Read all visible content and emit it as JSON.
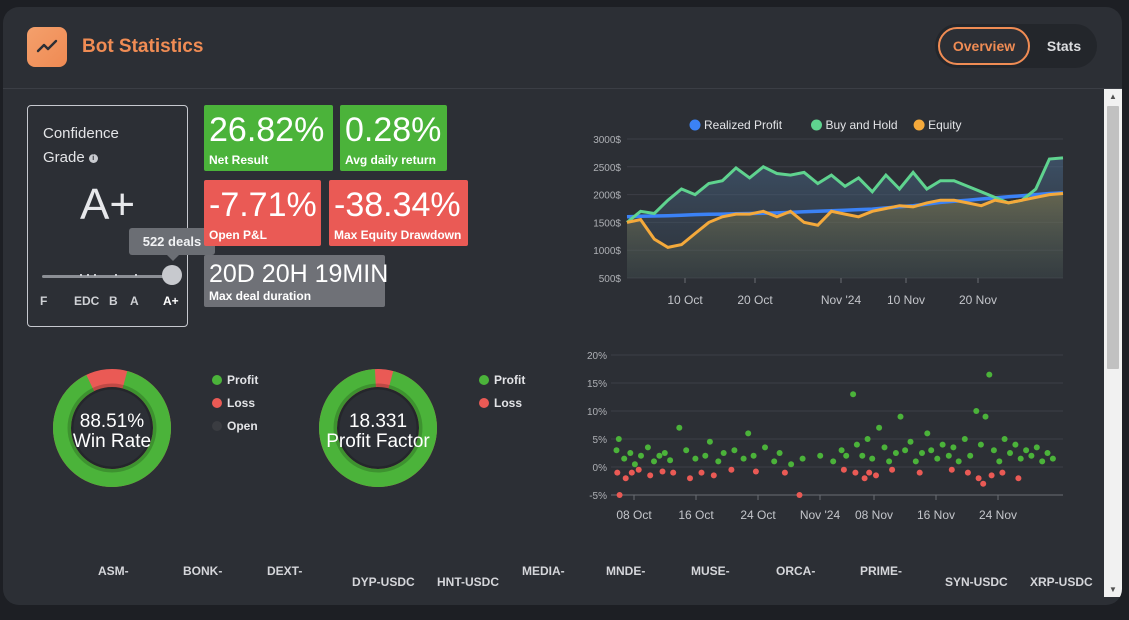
{
  "app": {
    "title": "Bot Statistics",
    "icon": "chart-line-icon",
    "accent_color": "#f08c54"
  },
  "tabs": [
    {
      "label": "Overview",
      "active": true
    },
    {
      "label": "Stats",
      "active": false
    }
  ],
  "confidence": {
    "title": "Confidence Grade",
    "grade": "A+",
    "tooltip": "522 deals",
    "scale": [
      "F",
      "EDC",
      "B",
      "A",
      "A+"
    ],
    "selected": "A+"
  },
  "stats": {
    "net_result": {
      "value": "26.82%",
      "label": "Net Result",
      "color": "#4bb33a"
    },
    "avg_daily_return": {
      "value": "0.28%",
      "label": "Avg daily return",
      "color": "#4bb33a"
    },
    "open_pnl": {
      "value": "-7.71%",
      "label": "Open P&L",
      "color": "#ea5a55"
    },
    "max_equity_drawdown": {
      "value": "-38.34%",
      "label": "Max Equity Drawdown",
      "color": "#ea5a55"
    },
    "max_deal_duration": {
      "value": "20D 20H 19MIN",
      "label": "Max deal duration",
      "color": "#6f7177"
    }
  },
  "win_rate": {
    "value": "88.51%",
    "label": "Win Rate",
    "profit_fraction": 0.8851,
    "legend": [
      {
        "label": "Profit",
        "color": "#4bb33a"
      },
      {
        "label": "Loss",
        "color": "#ea5a55"
      },
      {
        "label": "Open",
        "color": "#3a3c41"
      }
    ]
  },
  "profit_factor": {
    "value": "18.331",
    "label": "Profit Factor",
    "profit_fraction": 0.9483,
    "legend": [
      {
        "label": "Profit",
        "color": "#4bb33a"
      },
      {
        "label": "Loss",
        "color": "#ea5a55"
      }
    ]
  },
  "symbols": [
    "ASM-",
    "BONK-",
    "DEXT-",
    "DYP-USDC",
    "HNT-USDC",
    "MEDIA-",
    "MNDE-",
    "MUSE-",
    "ORCA-",
    "PRIME-",
    "SYN-USDC",
    "XRP-USDC"
  ],
  "chart_data": [
    {
      "type": "line",
      "legend": [
        {
          "name": "Realized Profit",
          "color": "#3b82f6"
        },
        {
          "name": "Buy and Hold",
          "color": "#5fd38f"
        },
        {
          "name": "Equity",
          "color": "#f4a93b"
        }
      ],
      "legend_position": "top",
      "ylim": [
        500,
        3000
      ],
      "yticks": [
        "500$",
        "1000$",
        "1500$",
        "2000$",
        "2500$",
        "3000$"
      ],
      "xticks": [
        "10 Oct",
        "20 Oct",
        "Nov '24",
        "10 Nov",
        "20 Nov"
      ],
      "x": [
        "Oct 1",
        "Oct 3",
        "Oct 5",
        "Oct 7",
        "Oct 9",
        "Oct 11",
        "Oct 13",
        "Oct 15",
        "Oct 17",
        "Oct 19",
        "Oct 21",
        "Oct 23",
        "Oct 25",
        "Oct 27",
        "Oct 29",
        "Oct 31",
        "Nov 2",
        "Nov 4",
        "Nov 6",
        "Nov 8",
        "Nov 10",
        "Nov 12",
        "Nov 14",
        "Nov 16",
        "Nov 18",
        "Nov 20",
        "Nov 22",
        "Nov 24",
        "Nov 26",
        "Nov 28",
        "Nov 30",
        "Dec 2",
        "Dec 4"
      ],
      "series": [
        {
          "name": "Realized Profit",
          "values": [
            1600,
            1610,
            1615,
            1620,
            1630,
            1640,
            1645,
            1650,
            1655,
            1660,
            1665,
            1670,
            1680,
            1690,
            1700,
            1710,
            1720,
            1730,
            1740,
            1760,
            1780,
            1800,
            1830,
            1860,
            1880,
            1900,
            1920,
            1940,
            1960,
            1980,
            2000,
            2020,
            2030
          ]
        },
        {
          "name": "Buy and Hold",
          "values": [
            1500,
            1700,
            1660,
            1900,
            2100,
            2000,
            2200,
            2250,
            2480,
            2300,
            2500,
            2380,
            2350,
            2400,
            2200,
            2350,
            2150,
            2300,
            2050,
            2350,
            2100,
            2400,
            2100,
            2250,
            2250,
            2150,
            2050,
            1950,
            1850,
            1900,
            2100,
            2640,
            2660
          ]
        },
        {
          "name": "Equity",
          "values": [
            1500,
            1550,
            1200,
            1050,
            1100,
            1300,
            1500,
            1600,
            1650,
            1650,
            1700,
            1600,
            1700,
            1500,
            1450,
            1700,
            1650,
            1600,
            1700,
            1750,
            1800,
            1780,
            1850,
            1900,
            1900,
            1850,
            1800,
            1900,
            1850,
            1900,
            1950,
            2000,
            2020
          ]
        }
      ]
    },
    {
      "type": "scatter",
      "ylim": [
        -5,
        20
      ],
      "yticks": [
        "-5%",
        "0%",
        "5%",
        "10%",
        "15%",
        "20%"
      ],
      "xticks": [
        "08 Oct",
        "16 Oct",
        "24 Oct",
        "Nov '24",
        "08 Nov",
        "16 Nov",
        "24 Nov"
      ],
      "series": [
        {
          "name": "Profit",
          "color": "#4bb33a",
          "values": [
            [
              0.2,
              3
            ],
            [
              0.5,
              5
            ],
            [
              1.2,
              1.5
            ],
            [
              2.0,
              2.5
            ],
            [
              2.6,
              0.5
            ],
            [
              3.4,
              2
            ],
            [
              4.3,
              3.5
            ],
            [
              5.1,
              1
            ],
            [
              5.8,
              2
            ],
            [
              6.5,
              2.5
            ],
            [
              7.2,
              1.2
            ],
            [
              8.4,
              7
            ],
            [
              9.3,
              3
            ],
            [
              10.5,
              1.5
            ],
            [
              11.8,
              2
            ],
            [
              12.4,
              4.5
            ],
            [
              13.5,
              1
            ],
            [
              14.2,
              2.5
            ],
            [
              15.6,
              3
            ],
            [
              16.8,
              1.5
            ],
            [
              17.4,
              6
            ],
            [
              18.1,
              2
            ],
            [
              19.6,
              3.5
            ],
            [
              20.8,
              1
            ],
            [
              21.5,
              2.5
            ],
            [
              23.0,
              0.5
            ],
            [
              24.5,
              1.5
            ],
            [
              26.8,
              2
            ],
            [
              28.5,
              1
            ],
            [
              29.6,
              3
            ],
            [
              30.2,
              2
            ],
            [
              31.1,
              13
            ],
            [
              31.6,
              4
            ],
            [
              32.3,
              2
            ],
            [
              33.0,
              5
            ],
            [
              33.6,
              1.5
            ],
            [
              34.5,
              7
            ],
            [
              35.2,
              3.5
            ],
            [
              35.8,
              1
            ],
            [
              36.7,
              2.5
            ],
            [
              37.3,
              9
            ],
            [
              37.9,
              3
            ],
            [
              38.6,
              4.5
            ],
            [
              39.3,
              1
            ],
            [
              40.1,
              2.5
            ],
            [
              40.8,
              6
            ],
            [
              41.3,
              3
            ],
            [
              42.1,
              1.5
            ],
            [
              42.8,
              4
            ],
            [
              43.6,
              2
            ],
            [
              44.2,
              3.5
            ],
            [
              44.9,
              1
            ],
            [
              45.7,
              5
            ],
            [
              46.4,
              2
            ],
            [
              47.2,
              10
            ],
            [
              47.8,
              4
            ],
            [
              48.4,
              9
            ],
            [
              48.9,
              16.5
            ],
            [
              49.5,
              3
            ],
            [
              50.2,
              1
            ],
            [
              50.9,
              5
            ],
            [
              51.6,
              2.5
            ],
            [
              52.3,
              4
            ],
            [
              53.0,
              1.5
            ],
            [
              53.7,
              3
            ],
            [
              54.4,
              2
            ],
            [
              55.1,
              3.5
            ],
            [
              55.8,
              1
            ],
            [
              56.5,
              2.5
            ],
            [
              57.2,
              1.5
            ]
          ]
        },
        {
          "name": "Loss",
          "color": "#ea5a55",
          "values": [
            [
              0.3,
              -1
            ],
            [
              0.6,
              -5
            ],
            [
              1.4,
              -2
            ],
            [
              2.2,
              -1
            ],
            [
              3.1,
              -0.5
            ],
            [
              4.6,
              -1.5
            ],
            [
              6.2,
              -0.8
            ],
            [
              7.6,
              -1
            ],
            [
              9.8,
              -2
            ],
            [
              11.3,
              -1
            ],
            [
              12.9,
              -1.5
            ],
            [
              15.2,
              -0.5
            ],
            [
              18.4,
              -0.8
            ],
            [
              22.2,
              -1
            ],
            [
              24.1,
              -5
            ],
            [
              29.9,
              -0.5
            ],
            [
              31.4,
              -1
            ],
            [
              32.6,
              -2
            ],
            [
              33.2,
              -1
            ],
            [
              34.1,
              -1.5
            ],
            [
              36.2,
              -0.5
            ],
            [
              39.8,
              -1
            ],
            [
              44.0,
              -0.5
            ],
            [
              46.1,
              -1
            ],
            [
              47.5,
              -2
            ],
            [
              48.1,
              -3
            ],
            [
              49.2,
              -1.5
            ],
            [
              50.6,
              -1
            ],
            [
              52.7,
              -2
            ]
          ]
        }
      ]
    }
  ]
}
